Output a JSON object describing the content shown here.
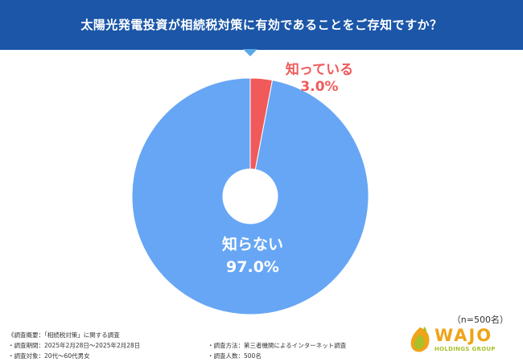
{
  "header": {
    "title": "太陽光発電投資が相続税対策に有効であることをご存知ですか？"
  },
  "chart_data": {
    "type": "pie",
    "donut": true,
    "slices": [
      {
        "label": "知っている",
        "value": 3.0,
        "value_label": "3.0%",
        "color": "#f05a5a"
      },
      {
        "label": "知らない",
        "value": 97.0,
        "value_label": "97.0%",
        "color": "#67a6f5"
      }
    ],
    "sample_size": "（n=500名）"
  },
  "footer": {
    "summary": "《調査概要：「相続税対策」に関する調査",
    "period": "・調査期間：2025年2月28日〜2025年2月28日",
    "method": "・調査方法：第三者機関によるインターネット調査",
    "target": "・調査対象：20代〜60代男女",
    "respondents": "・調査人数：500名"
  },
  "logo": {
    "main": "WAJO",
    "sub": "HOLDINGS GROUP"
  },
  "colors": {
    "header_bg": "#1b56a8",
    "known": "#f05a5a",
    "unknown": "#67a6f5"
  }
}
